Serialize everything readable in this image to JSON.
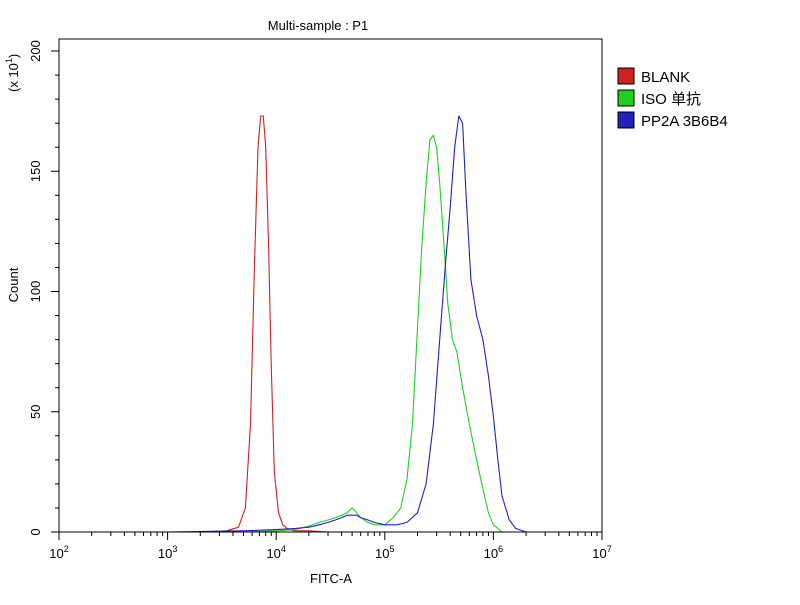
{
  "chart_data": {
    "type": "line",
    "title": "Multi-sample : P1",
    "xlabel": "FITC-A",
    "ylabel": "Count",
    "y_multiplier_prefix": "(x 10",
    "y_multiplier_exp": "1",
    "y_multiplier_suffix": ")",
    "x_scale": "log",
    "xlim": [
      100,
      10000000
    ],
    "ylim": [
      0,
      205
    ],
    "x_ticks": [
      {
        "value": 100,
        "base": "10",
        "exp": "2"
      },
      {
        "value": 1000,
        "base": "10",
        "exp": "3"
      },
      {
        "value": 10000,
        "base": "10",
        "exp": "4"
      },
      {
        "value": 100000,
        "base": "10",
        "exp": "5"
      },
      {
        "value": 1000000,
        "base": "10",
        "exp": "6"
      },
      {
        "value": 10000000,
        "base": "10",
        "exp": "7"
      }
    ],
    "y_ticks": [
      0,
      50,
      100,
      150,
      200
    ],
    "y_tick_labels": [
      "0",
      "50",
      "100",
      "150",
      "200"
    ],
    "grid": false,
    "legend_position": "right",
    "series": [
      {
        "name": "BLANK",
        "color": "#cc2222",
        "x": [
          100,
          2000,
          3500,
          4500,
          5200,
          5800,
          6300,
          6800,
          7200,
          7600,
          8000,
          8500,
          9000,
          9600,
          10500,
          11500,
          13000,
          15000,
          20000,
          30000,
          60000,
          200000,
          1000000,
          10000000
        ],
        "y": [
          0,
          0,
          0.5,
          2,
          10,
          45,
          110,
          160,
          173,
          173,
          160,
          120,
          70,
          25,
          8,
          3,
          1,
          0.5,
          0.5,
          0,
          0,
          0,
          0,
          0
        ]
      },
      {
        "name": "ISO 单抗",
        "color": "#22cc22",
        "x": [
          100,
          5000,
          10000,
          15000,
          20000,
          25000,
          30000,
          35000,
          40000,
          45000,
          50000,
          55000,
          60000,
          70000,
          80000,
          100000,
          120000,
          140000,
          160000,
          180000,
          200000,
          220000,
          240000,
          260000,
          280000,
          300000,
          320000,
          350000,
          380000,
          420000,
          460000,
          520000,
          600000,
          700000,
          800000,
          900000,
          1000000,
          1200000,
          10000000
        ],
        "y": [
          0,
          0,
          0.5,
          1,
          2.5,
          4,
          5,
          6,
          7,
          8,
          10,
          8,
          6,
          4,
          3,
          3,
          6,
          10,
          22,
          45,
          85,
          120,
          145,
          163,
          165,
          160,
          145,
          120,
          95,
          80,
          75,
          60,
          45,
          30,
          18,
          8,
          3,
          0,
          0
        ]
      },
      {
        "name": "PP2A 3B6B4",
        "color": "#2222bb",
        "x": [
          100,
          1000,
          5000,
          10000,
          15000,
          20000,
          25000,
          30000,
          35000,
          40000,
          45000,
          50000,
          55000,
          60000,
          70000,
          80000,
          100000,
          130000,
          160000,
          200000,
          240000,
          280000,
          320000,
          360000,
          400000,
          440000,
          480000,
          520000,
          560000,
          620000,
          700000,
          800000,
          900000,
          1000000,
          1100000,
          1200000,
          1400000,
          1600000,
          2000000,
          10000000
        ],
        "y": [
          0,
          0,
          0.5,
          1,
          1.5,
          2,
          3,
          4,
          5,
          6,
          7,
          7,
          7,
          6,
          5,
          4,
          3,
          3,
          4,
          8,
          20,
          45,
          80,
          110,
          135,
          160,
          173,
          170,
          140,
          105,
          90,
          80,
          65,
          48,
          30,
          15,
          5,
          1.5,
          0,
          0
        ]
      }
    ]
  }
}
